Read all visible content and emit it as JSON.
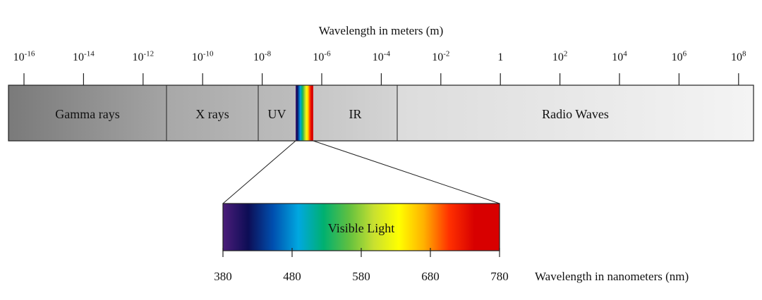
{
  "top_axis": {
    "title": "Wavelength in meters (m)",
    "ticks": [
      {
        "base": "10",
        "exp": "-16"
      },
      {
        "base": "10",
        "exp": "-14"
      },
      {
        "base": "10",
        "exp": "-12"
      },
      {
        "base": "10",
        "exp": "-10"
      },
      {
        "base": "10",
        "exp": "-8"
      },
      {
        "base": "10",
        "exp": "-6"
      },
      {
        "base": "10",
        "exp": "-4"
      },
      {
        "base": "10",
        "exp": "-2"
      },
      {
        "base": "1",
        "exp": ""
      },
      {
        "base": "10",
        "exp": "2"
      },
      {
        "base": "10",
        "exp": "4"
      },
      {
        "base": "10",
        "exp": "6"
      },
      {
        "base": "10",
        "exp": "8"
      }
    ]
  },
  "regions": [
    {
      "name": "Gamma rays",
      "color_from": "#7a7a7a",
      "color_to": "#a4a4a4"
    },
    {
      "name": "X rays",
      "color_from": "#a8a8a8",
      "color_to": "#b6b6b6"
    },
    {
      "name": "UV",
      "color_from": "#b8b8b8",
      "color_to": "#bcbcbc"
    },
    {
      "name": "IR",
      "color_from": "#c6c6c6",
      "color_to": "#d4d4d4"
    },
    {
      "name": "Radio Waves",
      "color_from": "#dcdcdc",
      "color_to": "#f4f4f4"
    }
  ],
  "visible": {
    "label": "Visible Light",
    "axis_title": "Wavelength in nanometers (nm)",
    "ticks": [
      "380",
      "480",
      "580",
      "680",
      "780"
    ],
    "spectrum_colors": [
      "#4b1d7a",
      "#0d0d55",
      "#0050b0",
      "#00a8e0",
      "#00b070",
      "#60c040",
      "#c8e030",
      "#ffff00",
      "#ffb000",
      "#ff3000",
      "#d80000",
      "#d80000"
    ]
  },
  "colors": {
    "stroke": "#222222"
  }
}
